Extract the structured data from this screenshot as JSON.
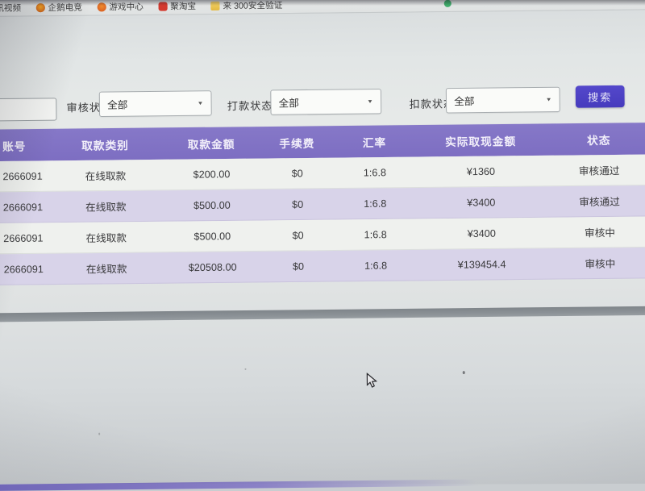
{
  "bookmarks_bar": {
    "items": [
      {
        "icon": "site-icon",
        "label": "讯视频"
      },
      {
        "icon": "penguin-icon",
        "label": "企鹅电竞"
      },
      {
        "icon": "game-icon",
        "label": "游戏中心"
      },
      {
        "icon": "taobao-icon",
        "label": "聚淘宝"
      },
      {
        "icon": "folder-icon",
        "label": "来 300安全验证"
      }
    ]
  },
  "filters": {
    "keyword_input_value": "",
    "groups": [
      {
        "label": "审核状态",
        "value": "全部"
      },
      {
        "label": "打款状态",
        "value": "全部"
      },
      {
        "label": "扣款状态",
        "value": "全部"
      }
    ],
    "search_button_label": "搜索"
  },
  "table": {
    "columns": [
      "账号",
      "取款类别",
      "取款金额",
      "手续费",
      "汇率",
      "实际取现金额",
      "状态"
    ],
    "rows": [
      [
        "2666091",
        "在线取款",
        "$200.00",
        "$0",
        "1:6.8",
        "¥1360",
        "审核通过"
      ],
      [
        "2666091",
        "在线取款",
        "$500.00",
        "$0",
        "1:6.8",
        "¥3400",
        "审核通过"
      ],
      [
        "2666091",
        "在线取款",
        "$500.00",
        "$0",
        "1:6.8",
        "¥3400",
        "审核中"
      ],
      [
        "2666091",
        "在线取款",
        "$20508.00",
        "$0",
        "1:6.8",
        "¥139454.4",
        "审核中"
      ]
    ]
  },
  "colors": {
    "header_purple": "#7d6ec2",
    "row_alt_lavender": "#d8d3e9",
    "search_button_purple": "#4a3ec6",
    "divider_gray": "#8b9196"
  }
}
